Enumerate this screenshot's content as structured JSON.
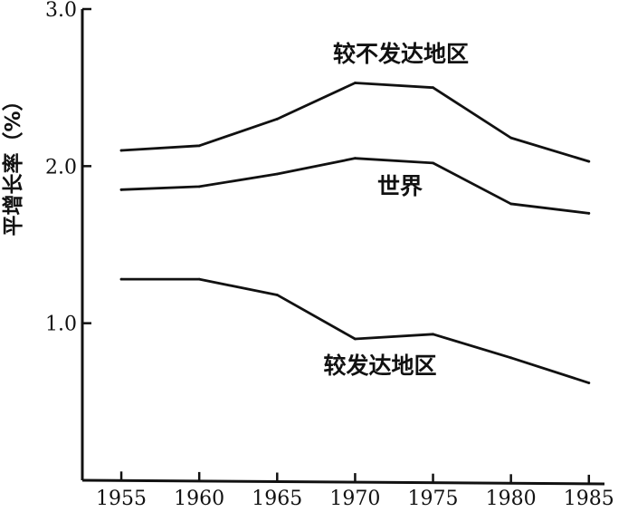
{
  "chart_data": {
    "type": "line",
    "title": "",
    "xlabel": "",
    "ylabel": "平增长率（%）",
    "x": [
      1955,
      1960,
      1965,
      1970,
      1975,
      1980,
      1985
    ],
    "xlim": [
      1952.5,
      1986
    ],
    "ylim": [
      0.0,
      3.0
    ],
    "yticks": [
      "3.0",
      "2.0",
      "1.0"
    ],
    "xticks": [
      "1955",
      "1960",
      "1965",
      "1970",
      "1975",
      "1980",
      "1985"
    ],
    "grid": false,
    "series": [
      {
        "name": "较不发达地区",
        "values": [
          2.1,
          2.13,
          2.3,
          2.53,
          2.5,
          2.18,
          2.03
        ]
      },
      {
        "name": "世界",
        "values": [
          1.85,
          1.87,
          1.95,
          2.05,
          2.02,
          1.76,
          1.7
        ]
      },
      {
        "name": "较发达地区",
        "values": [
          1.28,
          1.28,
          1.18,
          0.9,
          0.93,
          0.78,
          0.62
        ]
      }
    ]
  }
}
